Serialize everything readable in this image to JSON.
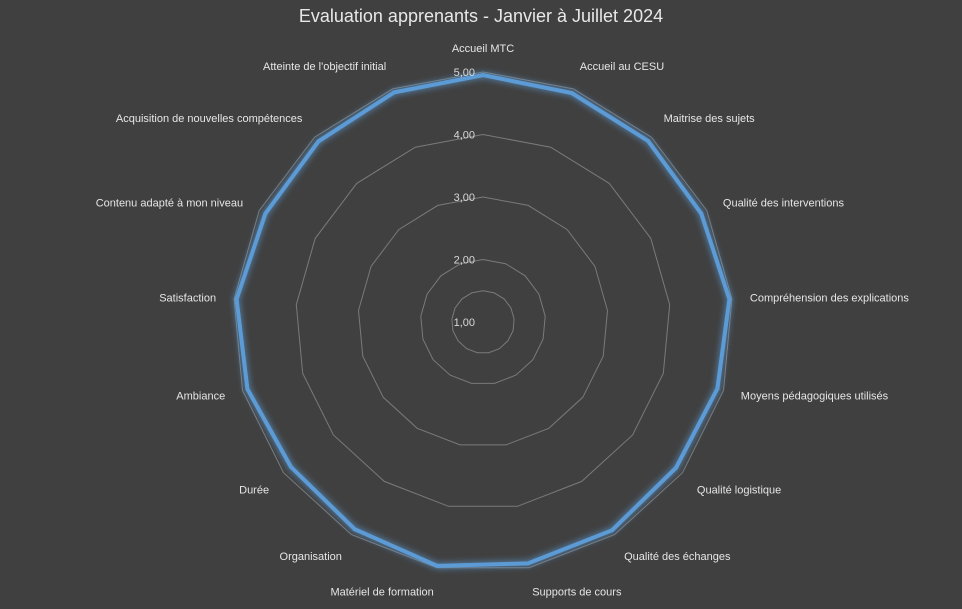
{
  "chart_data": {
    "type": "radar",
    "title": "Evaluation apprenants - Janvier à Juillet 2024",
    "categories": [
      "Accueil MTC",
      "Accueil au CESU",
      "Maitrise des sujets",
      "Qualité des interventions",
      "Compréhension des explications",
      "Moyens pédagogiques utilisés",
      "Qualité logistique",
      "Qualité des échanges",
      "Supports de cours",
      "Matériel de formation",
      "Organisation",
      "Durée",
      "Ambiance",
      "Satisfaction",
      "Contenu adapté à mon niveau",
      "Acquisition de nouvelles compétences",
      "Atteinte de l'objectif initial"
    ],
    "series": [
      {
        "values": [
          4.95,
          4.93,
          4.92,
          4.9,
          4.96,
          4.9,
          4.87,
          4.92,
          4.93,
          4.97,
          4.9,
          4.85,
          4.92,
          4.96,
          4.89,
          4.91,
          4.94
        ]
      }
    ],
    "radial_ticks": [
      "1,00",
      "2,00",
      "3,00",
      "4,00",
      "5,00"
    ],
    "rlim": [
      1,
      5
    ],
    "colors": {
      "series": "#5b9bd5",
      "grid": "#7a7a7a",
      "background": "#404040"
    },
    "grid": true,
    "legend": "none"
  }
}
